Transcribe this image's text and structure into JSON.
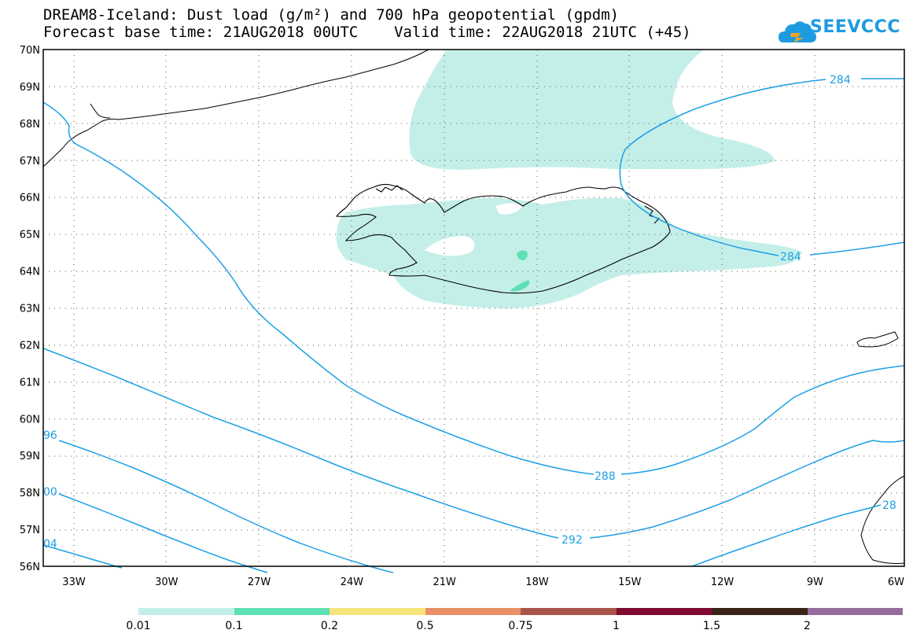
{
  "title": {
    "line1": "DREAM8-Iceland: Dust load (g/m²) and 700 hPa geopotential (gpdm)",
    "line2": "Forecast base time: 21AUG2018 00UTC    Valid time: 22AUG2018 21UTC (+45)"
  },
  "logo": {
    "text": "SEEVCCC",
    "icon": "cloud-icon",
    "color": "#1e9be0"
  },
  "axes": {
    "lat_labels": [
      "70N",
      "69N",
      "68N",
      "67N",
      "66N",
      "65N",
      "64N",
      "63N",
      "62N",
      "61N",
      "60N",
      "59N",
      "58N",
      "57N",
      "56N"
    ],
    "lon_labels": [
      "33W",
      "30W",
      "27W",
      "24W",
      "21W",
      "18W",
      "15W",
      "12W",
      "9W",
      "6W"
    ],
    "lat_range": [
      56,
      70
    ],
    "lon_range": [
      -34.5,
      -6
    ],
    "grid": true
  },
  "contours": [
    {
      "value": "284",
      "label": "284"
    },
    {
      "value": "284",
      "label": "284"
    },
    {
      "value": "288",
      "label": "288"
    },
    {
      "value": "292",
      "label": "292"
    },
    {
      "value": "96",
      "label": "96"
    },
    {
      "value": "00",
      "label": "00"
    },
    {
      "value": "04",
      "label": "04"
    },
    {
      "value": "28",
      "label": "28"
    }
  ],
  "contour_color": "#1ea0e6",
  "colorbar": {
    "labels": [
      "0.01",
      "0.1",
      "0.2",
      "0.5",
      "0.75",
      "1",
      "1.5",
      "2"
    ],
    "colors": [
      "#c4efe9",
      "#5ee0b5",
      "#f7e47a",
      "#e99068",
      "#a85448",
      "#800b30",
      "#3a2317",
      "#976b9e"
    ]
  }
}
